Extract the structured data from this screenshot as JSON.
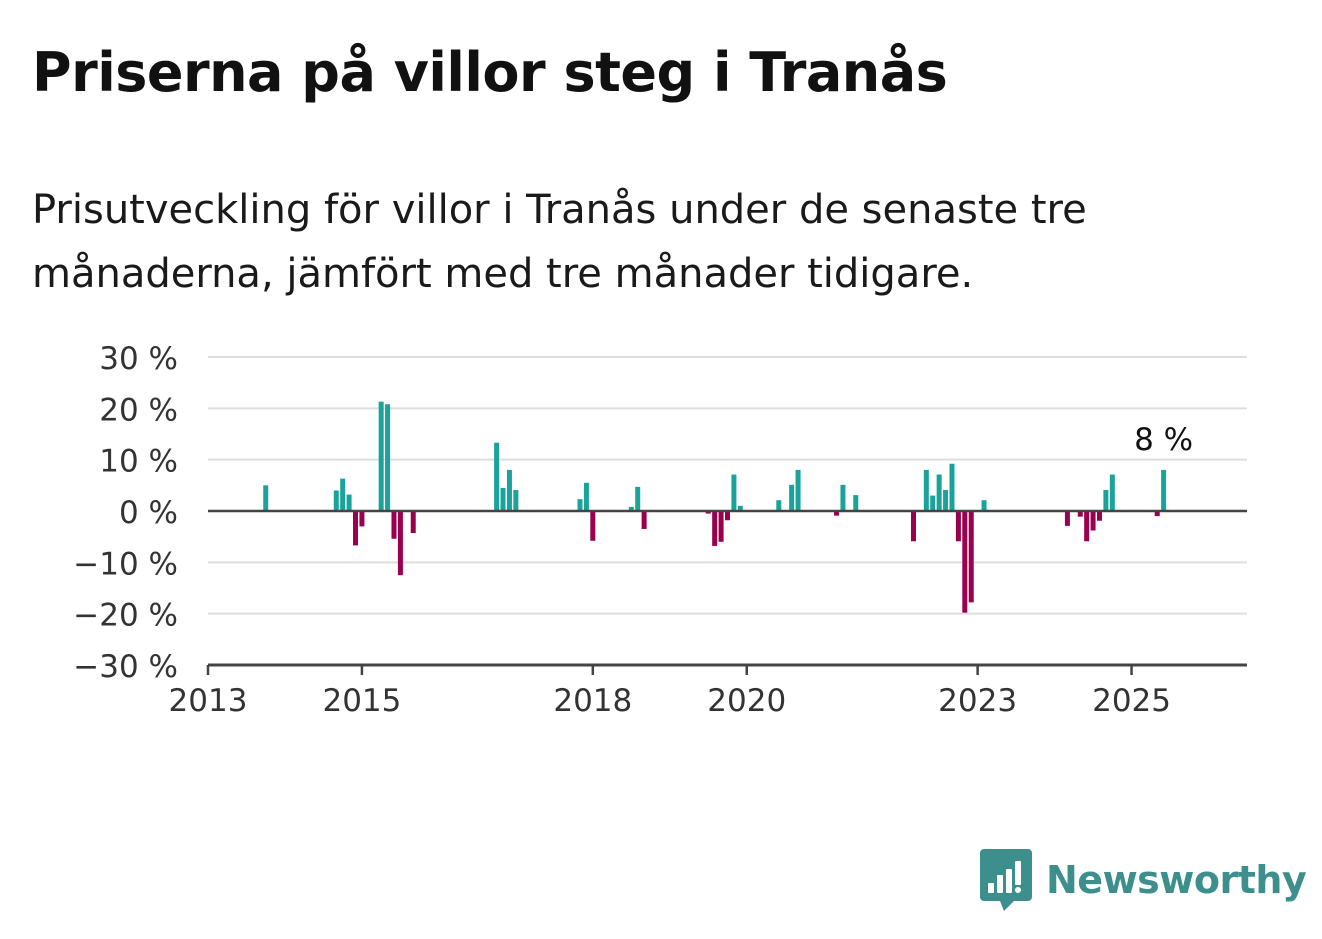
{
  "header": {
    "title": "Priserna på villor steg i Tranås",
    "subtitle": "Prisutveckling för villor i Tranås under de senaste tre månaderna, jämfört med tre månader tidigare."
  },
  "brand": {
    "name": "Newsworthy",
    "color": "#3d8f8d"
  },
  "colors": {
    "positive": "#1aa39a",
    "negative": "#99004d",
    "grid": "#dddddd",
    "axis": "#444444"
  },
  "chart_data": {
    "type": "bar",
    "x_type": "date",
    "unit": "%",
    "xlim": [
      "2013-01",
      "2026-07"
    ],
    "ylim": [
      -30,
      30
    ],
    "y_ticks": [
      30,
      20,
      10,
      0,
      -10,
      -20,
      -30
    ],
    "y_tick_labels": [
      "30 %",
      "20 %",
      "10 %",
      "0 %",
      "−10 %",
      "−20 %",
      "−30 %"
    ],
    "x_ticks": [
      "2013-01",
      "2015-01",
      "2018-01",
      "2020-01",
      "2023-01",
      "2025-01"
    ],
    "x_tick_labels": [
      "2013",
      "2015",
      "2018",
      "2020",
      "2023",
      "2025"
    ],
    "grid": true,
    "annotation": {
      "label": "8 %",
      "x": "2025-06",
      "y": 8
    },
    "series": [
      {
        "x": [
          "2013-10",
          "2014-09",
          "2014-10",
          "2014-11",
          "2014-12",
          "2015-01",
          "2015-04",
          "2015-05",
          "2015-06",
          "2015-07",
          "2015-09",
          "2016-10",
          "2016-11",
          "2016-12",
          "2017-01",
          "2017-11",
          "2017-12",
          "2018-01",
          "2018-07",
          "2018-08",
          "2018-09",
          "2019-07",
          "2019-08",
          "2019-09",
          "2019-10",
          "2019-11",
          "2019-12",
          "2020-06",
          "2020-08",
          "2020-09",
          "2021-03",
          "2021-04",
          "2021-06",
          "2022-03",
          "2022-05",
          "2022-06",
          "2022-07",
          "2022-08",
          "2022-09",
          "2022-10",
          "2022-11",
          "2022-12",
          "2023-02",
          "2024-03",
          "2024-05",
          "2024-06",
          "2024-07",
          "2024-08",
          "2024-09",
          "2024-10",
          "2025-05",
          "2025-06"
        ],
        "values": [
          5,
          4,
          6.3,
          3.2,
          -6.7,
          -3,
          21.3,
          20.8,
          -5.4,
          -12.5,
          -4.3,
          13.3,
          4.5,
          8,
          4.1,
          2.3,
          5.5,
          -5.8,
          0.8,
          4.7,
          -3.5,
          -0.5,
          -6.8,
          -6,
          -1.8,
          7.1,
          1,
          2.1,
          5.1,
          8,
          -0.9,
          5.1,
          3.1,
          -5.9,
          8,
          3,
          7.1,
          4.1,
          9.2,
          -5.9,
          -19.8,
          -17.8,
          2.1,
          -2.9,
          -1.1,
          -5.9,
          -3.8,
          -1.9,
          4.1,
          7.1,
          -1,
          8
        ]
      }
    ]
  }
}
